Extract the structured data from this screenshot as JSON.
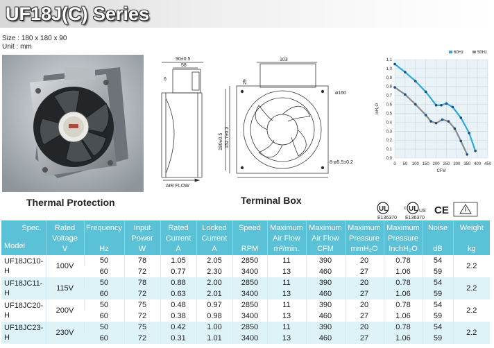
{
  "header": {
    "title": "UF18J(C) Series"
  },
  "size_label": "Size : 180 x 180 x 90",
  "unit_label": "Unit : mm",
  "captions": {
    "photo": "Thermal Protection",
    "drawing": "Terminal Box"
  },
  "drawing": {
    "dim_depth": "90±0.5",
    "dim_58": "58",
    "dim_6": "6",
    "dim_103": "103",
    "dim_29": "29",
    "dim_diameter": "ø160",
    "dim_height": "180±0.5",
    "dim_hole_spacing": "152.7±0.3",
    "dim_holes": "8-ø5.5±0.2",
    "airflow": "AIR FLOW"
  },
  "chart_data": {
    "type": "line",
    "xlabel": "CFM",
    "ylabel": "inH₂O",
    "x_ticks": [
      "0",
      "50",
      "100",
      "150",
      "200",
      "250",
      "300",
      "350",
      "400",
      "450"
    ],
    "y_ticks": [
      "0,0",
      "0,1",
      "0,2",
      "0,3",
      "0,4",
      "0,5",
      "0,6",
      "0,7",
      "0,8",
      "0,9",
      "1,0",
      "1,1"
    ],
    "xlim": [
      0,
      450
    ],
    "ylim": [
      0,
      1.1
    ],
    "grid": true,
    "legend_position": "top-right",
    "series": [
      {
        "name": "60Hz",
        "color": "#2aa9dc",
        "x": [
          0,
          50,
          100,
          150,
          200,
          225,
          250,
          280,
          320,
          360,
          390
        ],
        "y": [
          1.05,
          0.96,
          0.86,
          0.74,
          0.59,
          0.59,
          0.61,
          0.57,
          0.45,
          0.28,
          0.08
        ]
      },
      {
        "name": "50Hz",
        "color": "#888888",
        "x": [
          0,
          50,
          100,
          150,
          175,
          200,
          230,
          260,
          290,
          320,
          350
        ],
        "y": [
          0.79,
          0.71,
          0.6,
          0.48,
          0.41,
          0.39,
          0.43,
          0.41,
          0.33,
          0.19,
          0.04
        ]
      }
    ]
  },
  "certs": {
    "ul_number": "E136370",
    "cul_number": "E136370",
    "ce": "CE"
  },
  "table": {
    "headers": [
      {
        "l1": "Spec.",
        "l2": "",
        "l3": ""
      },
      {
        "l1": "Rated",
        "l2": "Voltage",
        "l3": "V"
      },
      {
        "l1": "Frequency",
        "l2": "",
        "l3": "Hz"
      },
      {
        "l1": "Input",
        "l2": "Power",
        "l3": "W"
      },
      {
        "l1": "Rated",
        "l2": "Current",
        "l3": "A"
      },
      {
        "l1": "Locked",
        "l2": "Current",
        "l3": "A"
      },
      {
        "l1": "Speed",
        "l2": "",
        "l3": "RPM"
      },
      {
        "l1": "Maximum",
        "l2": "Air Flow",
        "l3": "m³/min."
      },
      {
        "l1": "Maximum",
        "l2": "Air Flow",
        "l3": "CFM"
      },
      {
        "l1": "Maximum",
        "l2": "Pressure",
        "l3": "mmH₂O"
      },
      {
        "l1": "Maximum",
        "l2": "Pressure",
        "l3": "InchH₂O"
      },
      {
        "l1": "Noise",
        "l2": "",
        "l3": "dB"
      },
      {
        "l1": "Weight",
        "l2": "",
        "l3": "kg"
      }
    ],
    "model_header": "Model",
    "rows": [
      {
        "model": "UF18JC10-H",
        "voltage": "100V",
        "freq": [
          "50",
          "60"
        ],
        "power": [
          "78",
          "72"
        ],
        "current": [
          "1.05",
          "0.77"
        ],
        "locked": [
          "2.05",
          "2.30"
        ],
        "speed": [
          "2850",
          "3400"
        ],
        "m3": [
          "11",
          "13"
        ],
        "cfm": [
          "390",
          "460"
        ],
        "mm": [
          "20",
          "27"
        ],
        "inch": [
          "0.78",
          "1.06"
        ],
        "noise": [
          "54",
          "59"
        ],
        "weight": "2.2"
      },
      {
        "model": "UF18JC11-H",
        "voltage": "115V",
        "freq": [
          "50",
          "60"
        ],
        "power": [
          "78",
          "72"
        ],
        "current": [
          "0.88",
          "0.63"
        ],
        "locked": [
          "2.00",
          "2.01"
        ],
        "speed": [
          "2850",
          "3400"
        ],
        "m3": [
          "11",
          "13"
        ],
        "cfm": [
          "390",
          "460"
        ],
        "mm": [
          "20",
          "27"
        ],
        "inch": [
          "0.78",
          "1.06"
        ],
        "noise": [
          "54",
          "59"
        ],
        "weight": "2.2"
      },
      {
        "model": "UF18JC20-H",
        "voltage": "200V",
        "freq": [
          "50",
          "60"
        ],
        "power": [
          "75",
          "72"
        ],
        "current": [
          "0.48",
          "0.38"
        ],
        "locked": [
          "0.97",
          "0.98"
        ],
        "speed": [
          "2850",
          "3400"
        ],
        "m3": [
          "11",
          "13"
        ],
        "cfm": [
          "390",
          "460"
        ],
        "mm": [
          "20",
          "27"
        ],
        "inch": [
          "0.78",
          "1.06"
        ],
        "noise": [
          "54",
          "59"
        ],
        "weight": "2.2"
      },
      {
        "model": "UF18JC23-H",
        "voltage": "230V",
        "freq": [
          "50",
          "60"
        ],
        "power": [
          "75",
          "72"
        ],
        "current": [
          "0.42",
          "0.31"
        ],
        "locked": [
          "1.00",
          "1.01"
        ],
        "speed": [
          "2850",
          "3400"
        ],
        "m3": [
          "11",
          "13"
        ],
        "cfm": [
          "390",
          "460"
        ],
        "mm": [
          "20",
          "27"
        ],
        "inch": [
          "0.78",
          "1.06"
        ],
        "noise": [
          "54",
          "59"
        ],
        "weight": "2.2"
      }
    ]
  }
}
